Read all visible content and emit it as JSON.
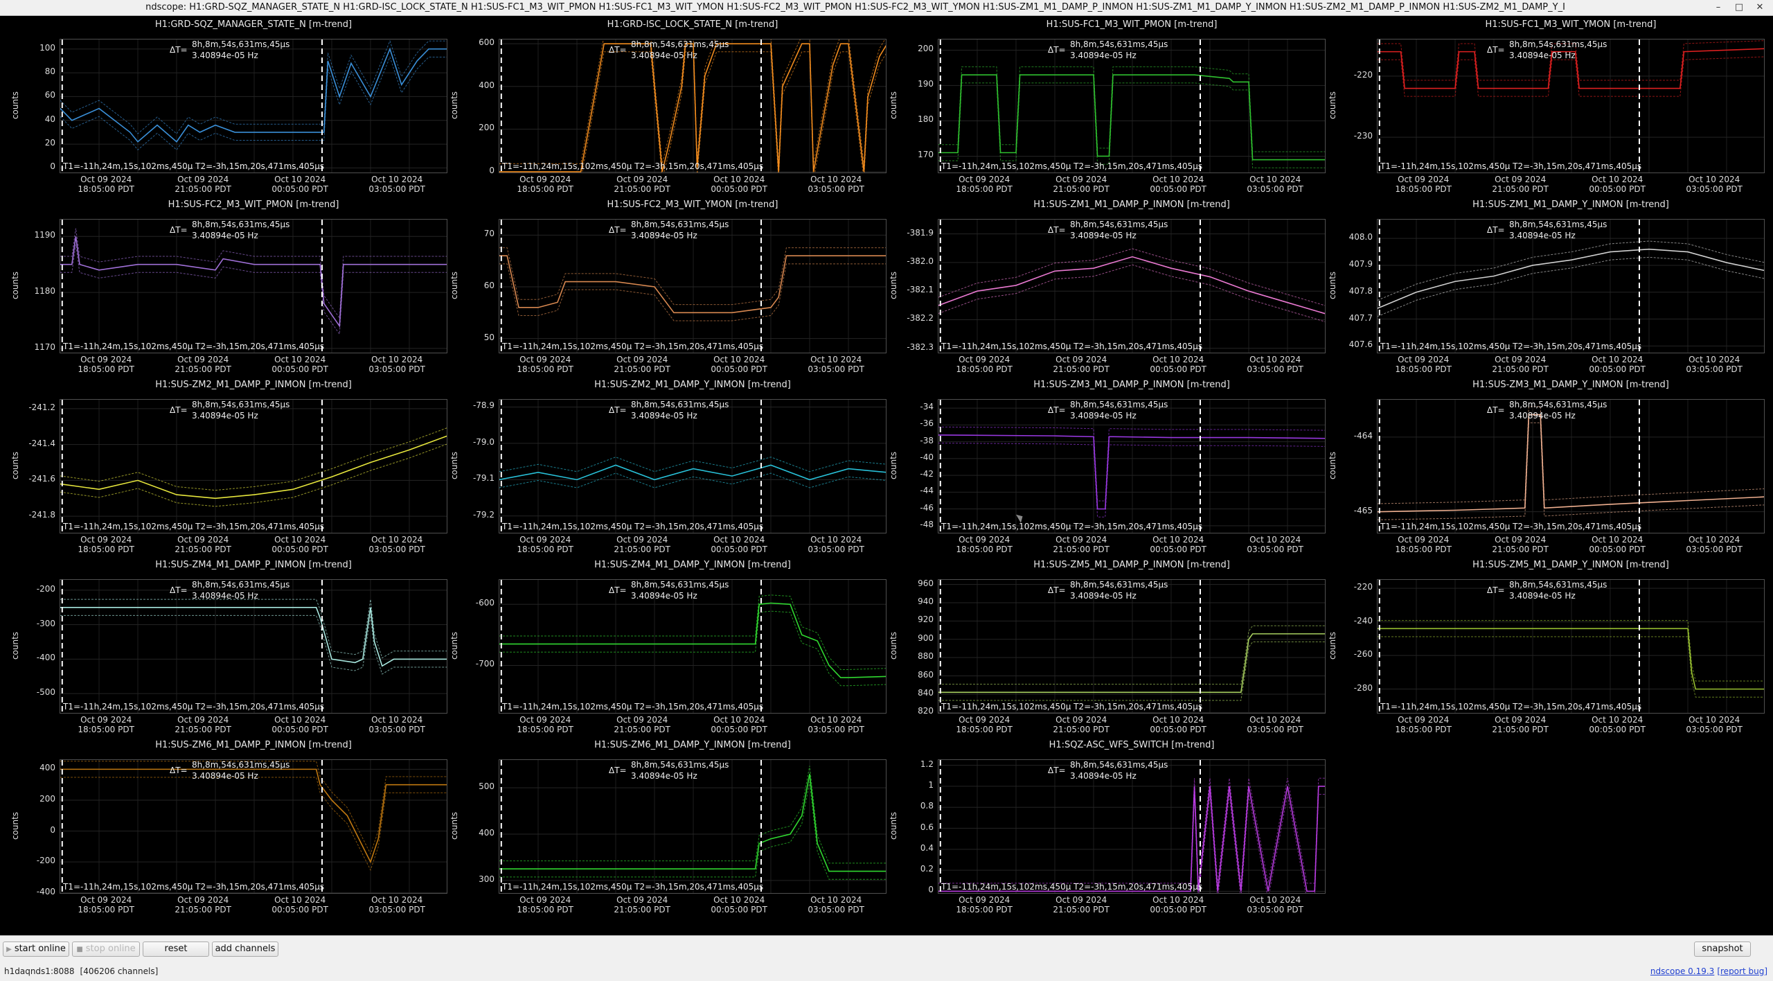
{
  "window": {
    "title": "ndscope: H1:GRD-SQZ_MANAGER_STATE_N H1:GRD-ISC_LOCK_STATE_N H1:SUS-FC1_M3_WIT_PMON H1:SUS-FC1_M3_WIT_YMON H1:SUS-FC2_M3_WIT_PMON H1:SUS-FC2_M3_WIT_YMON H1:SUS-ZM1_M1_DAMP_P_INMON H1:SUS-ZM1_M1_DAMP_Y_INMON H1:SUS-ZM2_M1_DAMP_P_INMON H1:SUS-ZM2_M1_DAMP_Y_I",
    "buttons": {
      "minimize": "–",
      "maximize": "□",
      "close": "✕"
    }
  },
  "common": {
    "ylabel": "counts",
    "delta_t": "ΔT=",
    "delta_value": "8h,8m,54s,631ms,45μs",
    "delta_freq": "3.40894e-05 Hz",
    "t_readout": "T1=-11h,24m,15s,102ms,450μ T2=-3h,15m,20s,471ms,405μs",
    "xticks": [
      {
        "date": "Oct 09 2024",
        "time": "18:05:00 PDT"
      },
      {
        "date": "Oct 09 2024",
        "time": "21:05:00 PDT"
      },
      {
        "date": "Oct 10 2024",
        "time": "00:05:00 PDT"
      },
      {
        "date": "Oct 10 2024",
        "time": "03:05:00 PDT"
      }
    ]
  },
  "chart_data": [
    {
      "type": "line",
      "title": "H1:GRD-SQZ_MANAGER_STATE_N [m-trend]",
      "color": "#3a8fd8",
      "yticks": [
        "100",
        "80",
        "60",
        "40",
        "20",
        "0"
      ],
      "ylim": [
        -5,
        108
      ],
      "x": [
        0,
        0.03,
        0.1,
        0.18,
        0.2,
        0.25,
        0.3,
        0.33,
        0.36,
        0.4,
        0.45,
        0.5,
        0.6,
        0.68,
        0.69,
        0.72,
        0.75,
        0.8,
        0.85,
        0.88,
        0.92,
        0.95,
        1.0
      ],
      "y": [
        50,
        40,
        50,
        30,
        22,
        36,
        22,
        36,
        30,
        36,
        30,
        30,
        30,
        30,
        90,
        60,
        88,
        60,
        100,
        70,
        90,
        100,
        100
      ]
    },
    {
      "type": "line",
      "title": "H1:GRD-ISC_LOCK_STATE_N [m-trend]",
      "color": "#f28c1e",
      "yticks": [
        "600",
        "400",
        "200",
        "0"
      ],
      "ylim": [
        -10,
        620
      ],
      "x": [
        0,
        0.01,
        0.02,
        0.21,
        0.24,
        0.27,
        0.28,
        0.39,
        0.42,
        0.44,
        0.47,
        0.48,
        0.5,
        0.51,
        0.53,
        0.56,
        0.59,
        0.62,
        0.7,
        0.72,
        0.73,
        0.78,
        0.8,
        0.81,
        0.84,
        0.86,
        0.88,
        0.9,
        0.94,
        0.95,
        0.98,
        1.0
      ],
      "y": [
        0,
        0,
        0,
        0,
        300,
        600,
        600,
        600,
        0,
        150,
        400,
        600,
        600,
        20,
        450,
        600,
        600,
        600,
        600,
        0,
        400,
        600,
        600,
        0,
        300,
        500,
        600,
        600,
        0,
        350,
        540,
        600
      ]
    },
    {
      "type": "line",
      "title": "H1:SUS-FC1_M3_WIT_PMON [m-trend]",
      "color": "#2fbf2f",
      "yticks": [
        "200",
        "190",
        "180",
        "170"
      ],
      "ylim": [
        165,
        203
      ],
      "x": [
        0,
        0.05,
        0.06,
        0.15,
        0.16,
        0.2,
        0.21,
        0.4,
        0.41,
        0.44,
        0.45,
        0.65,
        0.66,
        0.75,
        0.76,
        0.8,
        0.81,
        1.0
      ],
      "y": [
        171,
        171,
        193,
        193,
        171,
        171,
        193,
        193,
        170,
        170,
        193,
        193,
        193,
        192,
        191,
        191,
        169,
        169
      ]
    },
    {
      "type": "line",
      "title": "H1:SUS-FC1_M3_WIT_YMON [m-trend]",
      "color": "#e02020",
      "yticks": [
        "-220",
        "-230"
      ],
      "ylim": [
        -236,
        -214
      ],
      "x": [
        0,
        0.02,
        0.06,
        0.07,
        0.2,
        0.21,
        0.25,
        0.26,
        0.44,
        0.45,
        0.51,
        0.52,
        0.78,
        0.79,
        1.0
      ],
      "y": [
        -216,
        -216,
        -216,
        -222,
        -222,
        -216,
        -216,
        -222,
        -222,
        -216,
        -216,
        -222,
        -222,
        -216,
        -215.5
      ]
    },
    {
      "type": "line",
      "title": "H1:SUS-FC2_M3_WIT_PMON [m-trend]",
      "color": "#a070d8",
      "yticks": [
        "1190",
        "1180",
        "1170"
      ],
      "ylim": [
        1169,
        1193
      ],
      "x": [
        0,
        0.03,
        0.04,
        0.05,
        0.1,
        0.2,
        0.3,
        0.4,
        0.42,
        0.5,
        0.6,
        0.67,
        0.68,
        0.7,
        0.72,
        0.73,
        0.8,
        0.9,
        1.0
      ],
      "y": [
        1185,
        1185,
        1190,
        1185,
        1184,
        1185,
        1185,
        1184,
        1186,
        1185,
        1185,
        1185,
        1178,
        1176,
        1174,
        1185,
        1185,
        1185,
        1185
      ]
    },
    {
      "type": "line",
      "title": "H1:SUS-FC2_M3_WIT_YMON [m-trend]",
      "color": "#d88850",
      "yticks": [
        "70",
        "60",
        "50"
      ],
      "ylim": [
        47,
        73
      ],
      "x": [
        0,
        0.02,
        0.05,
        0.1,
        0.15,
        0.17,
        0.2,
        0.3,
        0.4,
        0.45,
        0.5,
        0.6,
        0.7,
        0.72,
        0.74,
        0.78,
        0.8,
        0.9,
        1.0
      ],
      "y": [
        66,
        66,
        56,
        56,
        57,
        61,
        61,
        61,
        60,
        55,
        55,
        55,
        56,
        58,
        66,
        66,
        66,
        66,
        66
      ]
    },
    {
      "type": "line",
      "title": "H1:SUS-ZM1_M1_DAMP_P_INMON [m-trend]",
      "color": "#e878d0",
      "yticks": [
        "-381.9",
        "-382.0",
        "-382.1",
        "-382.2",
        "-382.3"
      ],
      "ylim": [
        -382.32,
        -381.85
      ],
      "x": [
        0,
        0.1,
        0.2,
        0.3,
        0.4,
        0.5,
        0.6,
        0.7,
        0.8,
        0.9,
        1.0
      ],
      "y": [
        -382.15,
        -382.1,
        -382.08,
        -382.03,
        -382.02,
        -381.98,
        -382.02,
        -382.05,
        -382.1,
        -382.14,
        -382.18
      ]
    },
    {
      "type": "line",
      "title": "H1:SUS-ZM1_M1_DAMP_Y_INMON [m-trend]",
      "color": "#d0d0d0",
      "yticks": [
        "408.0",
        "407.9",
        "407.8",
        "407.7",
        "407.6"
      ],
      "ylim": [
        407.57,
        408.07
      ],
      "x": [
        0,
        0.1,
        0.2,
        0.3,
        0.4,
        0.5,
        0.6,
        0.7,
        0.8,
        0.9,
        1.0
      ],
      "y": [
        407.74,
        407.8,
        407.84,
        407.86,
        407.9,
        407.92,
        407.95,
        407.96,
        407.95,
        407.91,
        407.88
      ]
    },
    {
      "type": "line",
      "title": "H1:SUS-ZM2_M1_DAMP_P_INMON [m-trend]",
      "color": "#e6e63c",
      "yticks": [
        "-241.2",
        "-241.4",
        "-241.6",
        "-241.8"
      ],
      "ylim": [
        -241.9,
        -241.15
      ],
      "x": [
        0,
        0.1,
        0.2,
        0.3,
        0.4,
        0.5,
        0.6,
        0.7,
        0.8,
        0.9,
        1.0
      ],
      "y": [
        -241.62,
        -241.65,
        -241.6,
        -241.68,
        -241.7,
        -241.68,
        -241.65,
        -241.58,
        -241.5,
        -241.43,
        -241.35
      ]
    },
    {
      "type": "line",
      "title": "H1:SUS-ZM2_M1_DAMP_Y_INMON [m-trend]",
      "color": "#28c0d8",
      "yticks": [
        "-78.9",
        "-79.0",
        "-79.1",
        "-79.2"
      ],
      "ylim": [
        -79.25,
        -78.88
      ],
      "x": [
        0,
        0.1,
        0.2,
        0.3,
        0.4,
        0.5,
        0.6,
        0.7,
        0.8,
        0.9,
        1.0
      ],
      "y": [
        -79.1,
        -79.08,
        -79.1,
        -79.06,
        -79.1,
        -79.07,
        -79.09,
        -79.06,
        -79.1,
        -79.07,
        -79.08
      ]
    },
    {
      "type": "line",
      "title": "H1:SUS-ZM3_M1_DAMP_P_INMON [m-trend]",
      "color": "#9838e0",
      "yticks": [
        "-34",
        "-36",
        "-38",
        "-40",
        "-42",
        "-44",
        "-46",
        "-48"
      ],
      "ylim": [
        -49,
        -33
      ],
      "x": [
        0,
        0.3,
        0.4,
        0.41,
        0.42,
        0.43,
        0.44,
        0.45,
        0.6,
        0.8,
        1.0
      ],
      "y": [
        -37.2,
        -37.3,
        -37.4,
        -46,
        -46,
        -46,
        -37.4,
        -37.4,
        -37.5,
        -37.5,
        -37.6
      ]
    },
    {
      "type": "line",
      "title": "H1:SUS-ZM3_M1_DAMP_Y_INMON [m-trend]",
      "color": "#f0b090",
      "yticks": [
        "-464",
        "-465"
      ],
      "ylim": [
        -465.3,
        -463.5
      ],
      "x": [
        0,
        0.2,
        0.38,
        0.39,
        0.4,
        0.42,
        0.43,
        0.6,
        0.8,
        1.0
      ],
      "y": [
        -465,
        -464.98,
        -464.95,
        -463.7,
        -463.7,
        -463.7,
        -464.95,
        -464.9,
        -464.85,
        -464.8
      ]
    },
    {
      "type": "line",
      "title": "H1:SUS-ZM4_M1_DAMP_P_INMON [m-trend]",
      "color": "#a8e8e0",
      "yticks": [
        "-200",
        "-300",
        "-400",
        "-500"
      ],
      "ylim": [
        -560,
        -170
      ],
      "x": [
        0,
        0.66,
        0.67,
        0.7,
        0.76,
        0.78,
        0.8,
        0.81,
        0.83,
        0.86,
        0.9,
        1.0
      ],
      "y": [
        -250,
        -250,
        -280,
        -400,
        -410,
        -400,
        -250,
        -350,
        -420,
        -400,
        -400,
        -400
      ]
    },
    {
      "type": "line",
      "title": "H1:SUS-ZM4_M1_DAMP_Y_INMON [m-trend]",
      "color": "#30d830",
      "yticks": [
        "-600",
        "-700"
      ],
      "ylim": [
        -780,
        -560
      ],
      "x": [
        0,
        0.66,
        0.67,
        0.7,
        0.75,
        0.78,
        0.82,
        0.85,
        0.88,
        0.9,
        1.0
      ],
      "y": [
        -665,
        -665,
        -600,
        -598,
        -600,
        -650,
        -660,
        -700,
        -720,
        -720,
        -718
      ]
    },
    {
      "type": "line",
      "title": "H1:SUS-ZM5_M1_DAMP_P_INMON [m-trend]",
      "color": "#a8d060",
      "yticks": [
        "960",
        "940",
        "920",
        "900",
        "880",
        "860",
        "840",
        "820"
      ],
      "ylim": [
        818,
        965
      ],
      "x": [
        0,
        0.5,
        0.78,
        0.79,
        0.8,
        0.81,
        0.82,
        1.0
      ],
      "y": [
        842,
        842,
        842,
        870,
        900,
        906,
        906,
        906
      ]
    },
    {
      "type": "line",
      "title": "H1:SUS-ZM5_M1_DAMP_Y_INMON [m-trend]",
      "color": "#98c030",
      "yticks": [
        "-220",
        "-240",
        "-260",
        "-280"
      ],
      "ylim": [
        -295,
        -215
      ],
      "x": [
        0,
        0.5,
        0.8,
        0.81,
        0.82,
        1.0
      ],
      "y": [
        -244,
        -244,
        -244,
        -270,
        -280,
        -280
      ]
    },
    {
      "type": "line",
      "title": "H1:SUS-ZM6_M1_DAMP_P_INMON [m-trend]",
      "color": "#c07810",
      "yticks": [
        "400",
        "200",
        "0",
        "-200",
        "-400"
      ],
      "ylim": [
        -410,
        460
      ],
      "x": [
        0,
        0.66,
        0.67,
        0.7,
        0.74,
        0.78,
        0.8,
        0.82,
        0.84,
        0.86,
        0.9,
        1.0
      ],
      "y": [
        400,
        400,
        300,
        200,
        100,
        -100,
        -200,
        -50,
        300,
        300,
        300,
        300
      ]
    },
    {
      "type": "line",
      "title": "H1:SUS-ZM6_M1_DAMP_Y_INMON [m-trend]",
      "color": "#30d830",
      "yticks": [
        "500",
        "400",
        "300"
      ],
      "ylim": [
        270,
        560
      ],
      "x": [
        0,
        0.66,
        0.67,
        0.7,
        0.75,
        0.78,
        0.8,
        0.82,
        0.85,
        0.9,
        1.0
      ],
      "y": [
        325,
        325,
        380,
        390,
        400,
        440,
        530,
        380,
        320,
        320,
        320
      ]
    },
    {
      "type": "line",
      "title": "H1:SQZ-ASC_WFS_SWITCH [m-trend]",
      "color": "#b83ce0",
      "yticks": [
        "1.2",
        "1",
        "0.8",
        "0.6",
        "0.4",
        "0.2",
        "0"
      ],
      "ylim": [
        -0.03,
        1.25
      ],
      "x": [
        0,
        0.65,
        0.66,
        0.67,
        0.7,
        0.72,
        0.75,
        0.78,
        0.8,
        0.85,
        0.9,
        0.95,
        0.97,
        0.98,
        1.0
      ],
      "y": [
        0,
        0,
        1,
        0,
        1,
        0,
        1,
        0,
        1,
        0,
        1,
        0,
        0,
        1,
        1
      ]
    }
  ],
  "toolbar": {
    "start_online": "start online",
    "stop_online": "stop online",
    "reset": "reset",
    "add_channels": "add channels",
    "snapshot": "snapshot"
  },
  "status": {
    "server": "h1daqnds1:8088",
    "channels": "[406206 channels]",
    "version": "ndscope 0.19.3",
    "report": "[report bug]"
  }
}
